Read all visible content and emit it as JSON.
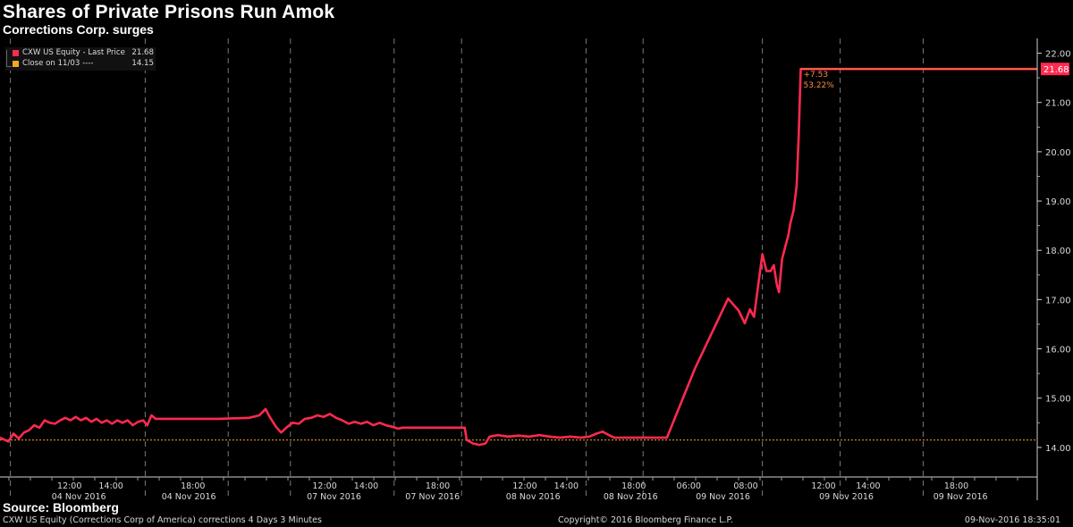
{
  "header": {
    "title": "Shares of Private Prisons Run Amok",
    "subtitle": "Corrections Corp. surges"
  },
  "legend": {
    "items": [
      {
        "label": "CXW US Equity - Last Price",
        "value": "21.68",
        "color": "#ff2a4f"
      },
      {
        "label": "Close on 11/03 ----",
        "value": "14.15",
        "color": "#f5a623"
      }
    ]
  },
  "annotations": {
    "change": "+7.53",
    "change_pct": "53.22%",
    "last_price_tag": "21.68"
  },
  "footer": {
    "source": "Source: Bloomberg",
    "description": "CXW US Equity (Corrections Corp of America) corrections 4 Days 3 Minutes",
    "copyright": "Copyright© 2016 Bloomberg Finance L.P.",
    "timestamp": "09-Nov-2016 18:35:01"
  },
  "chart_data": {
    "type": "line",
    "title": "Shares of Private Prisons Run Amok",
    "subtitle": "Corrections Corp. surges",
    "ylim": [
      13.4,
      22.3
    ],
    "yticks": [
      14.0,
      15.0,
      16.0,
      17.0,
      18.0,
      19.0,
      20.0,
      21.0,
      22.0
    ],
    "x_range": [
      0,
      100
    ],
    "reference_line": {
      "name": "Close on 11/03",
      "value": 14.15,
      "color": "#f5a623"
    },
    "session_breaks": [
      1,
      14,
      22,
      28,
      38,
      44.5,
      56.5,
      62,
      73.5,
      81,
      89
    ],
    "time_labels": [
      {
        "time": "12:00",
        "x": 6.7
      },
      {
        "time": "14:00",
        "x": 10.7
      },
      {
        "time": "18:00",
        "x": 18.6
      },
      {
        "time": "12:00",
        "x": 31.3
      },
      {
        "time": "14:00",
        "x": 35.3
      },
      {
        "time": "18:00",
        "x": 42.2
      },
      {
        "time": "12:00",
        "x": 50.6
      },
      {
        "time": "14:00",
        "x": 54.6
      },
      {
        "time": "18:00",
        "x": 61.1
      },
      {
        "time": "06:00",
        "x": 66.4
      },
      {
        "time": "08:00",
        "x": 71.9
      },
      {
        "time": "12:00",
        "x": 79.4
      },
      {
        "time": "14:00",
        "x": 83.7
      },
      {
        "time": "18:00",
        "x": 92.2
      }
    ],
    "date_labels": [
      {
        "date": "04 Nov 2016",
        "x": 7.6
      },
      {
        "date": "04 Nov 2016",
        "x": 18.2
      },
      {
        "date": "07 Nov 2016",
        "x": 32.2
      },
      {
        "date": "07 Nov 2016",
        "x": 41.7
      },
      {
        "date": "08 Nov 2016",
        "x": 51.4
      },
      {
        "date": "08 Nov 2016",
        "x": 60.8
      },
      {
        "date": "09 Nov 2016",
        "x": 69.7
      },
      {
        "date": "09 Nov 2016",
        "x": 81.6
      },
      {
        "date": "09 Nov 2016",
        "x": 92.6
      }
    ],
    "series": [
      {
        "name": "CXW US Equity - Last Price",
        "color": "#ff2a4f",
        "points": [
          [
            0,
            14.2
          ],
          [
            0.8,
            14.12
          ],
          [
            1.3,
            14.28
          ],
          [
            1.8,
            14.18
          ],
          [
            2.3,
            14.3
          ],
          [
            2.8,
            14.35
          ],
          [
            3.3,
            14.45
          ],
          [
            3.8,
            14.4
          ],
          [
            4.3,
            14.55
          ],
          [
            4.8,
            14.5
          ],
          [
            5.3,
            14.48
          ],
          [
            5.8,
            14.55
          ],
          [
            6.3,
            14.6
          ],
          [
            6.8,
            14.55
          ],
          [
            7.3,
            14.62
          ],
          [
            7.8,
            14.55
          ],
          [
            8.3,
            14.6
          ],
          [
            8.8,
            14.52
          ],
          [
            9.3,
            14.58
          ],
          [
            9.8,
            14.5
          ],
          [
            10.3,
            14.55
          ],
          [
            10.8,
            14.48
          ],
          [
            11.3,
            14.55
          ],
          [
            11.8,
            14.5
          ],
          [
            12.3,
            14.55
          ],
          [
            12.8,
            14.45
          ],
          [
            13.3,
            14.52
          ],
          [
            13.8,
            14.55
          ],
          [
            14.2,
            14.45
          ],
          [
            14.6,
            14.65
          ],
          [
            15,
            14.58
          ],
          [
            21,
            14.58
          ],
          [
            24,
            14.6
          ],
          [
            25,
            14.65
          ],
          [
            25.6,
            14.78
          ],
          [
            26,
            14.62
          ],
          [
            26.6,
            14.42
          ],
          [
            27.1,
            14.3
          ],
          [
            27.6,
            14.4
          ],
          [
            28.2,
            14.5
          ],
          [
            28.8,
            14.48
          ],
          [
            29.4,
            14.58
          ],
          [
            30,
            14.6
          ],
          [
            30.6,
            14.65
          ],
          [
            31.2,
            14.62
          ],
          [
            31.8,
            14.68
          ],
          [
            32.4,
            14.6
          ],
          [
            33,
            14.55
          ],
          [
            33.6,
            14.48
          ],
          [
            34.2,
            14.52
          ],
          [
            34.8,
            14.48
          ],
          [
            35.4,
            14.52
          ],
          [
            36,
            14.45
          ],
          [
            36.6,
            14.5
          ],
          [
            37.2,
            14.45
          ],
          [
            37.8,
            14.42
          ],
          [
            38.4,
            14.38
          ],
          [
            38.8,
            14.4
          ],
          [
            44.8,
            14.4
          ],
          [
            45,
            14.15
          ],
          [
            45.6,
            14.08
          ],
          [
            46.2,
            14.05
          ],
          [
            46.8,
            14.08
          ],
          [
            47.2,
            14.22
          ],
          [
            48,
            14.25
          ],
          [
            49,
            14.22
          ],
          [
            50,
            14.24
          ],
          [
            51,
            14.22
          ],
          [
            52,
            14.25
          ],
          [
            53,
            14.22
          ],
          [
            54,
            14.2
          ],
          [
            55,
            14.22
          ],
          [
            56,
            14.2
          ],
          [
            56.8,
            14.22
          ],
          [
            57.5,
            14.28
          ],
          [
            58.1,
            14.32
          ],
          [
            58.7,
            14.25
          ],
          [
            59.2,
            14.2
          ],
          [
            64.3,
            14.2
          ],
          [
            67,
            15.6
          ],
          [
            70.2,
            17.02
          ],
          [
            71.2,
            16.78
          ],
          [
            71.8,
            16.52
          ],
          [
            72.3,
            16.8
          ],
          [
            72.7,
            16.65
          ],
          [
            73.1,
            17.3
          ],
          [
            73.5,
            17.92
          ],
          [
            73.9,
            17.58
          ],
          [
            74.3,
            17.58
          ],
          [
            74.6,
            17.7
          ],
          [
            74.9,
            17.3
          ],
          [
            75.1,
            17.15
          ],
          [
            75.4,
            17.82
          ],
          [
            75.8,
            18.15
          ],
          [
            76,
            18.3
          ],
          [
            76.2,
            18.55
          ],
          [
            76.5,
            18.8
          ],
          [
            76.8,
            19.3
          ],
          [
            77,
            20.3
          ],
          [
            77.2,
            21.68
          ],
          [
            100,
            21.68
          ]
        ]
      }
    ]
  }
}
